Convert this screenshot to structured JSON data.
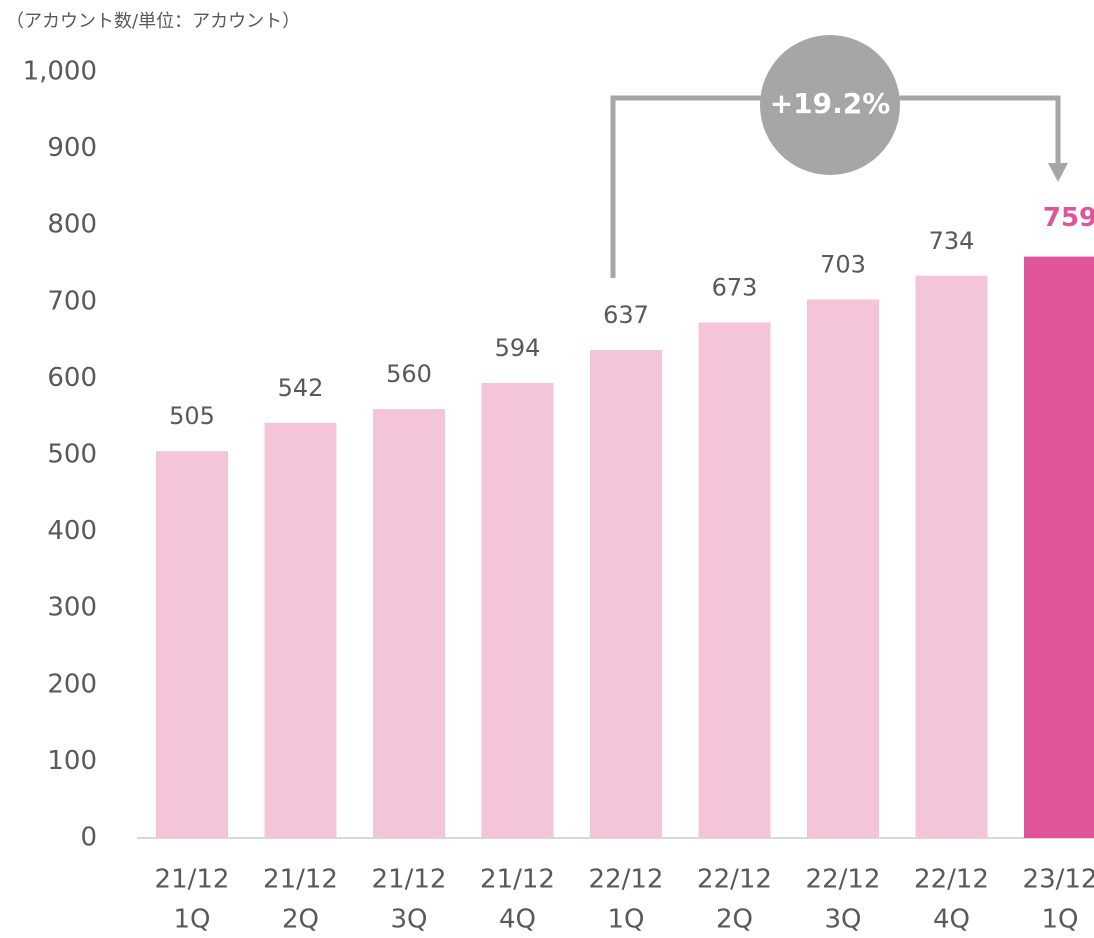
{
  "chart_data": {
    "type": "bar",
    "title": "（アカウント数/単位：アカウント）",
    "categories": [
      [
        "21/12",
        "1Q"
      ],
      [
        "21/12",
        "2Q"
      ],
      [
        "21/12",
        "3Q"
      ],
      [
        "21/12",
        "4Q"
      ],
      [
        "22/12",
        "1Q"
      ],
      [
        "22/12",
        "2Q"
      ],
      [
        "22/12",
        "3Q"
      ],
      [
        "22/12",
        "4Q"
      ],
      [
        "23/12",
        "1Q"
      ]
    ],
    "values": [
      505,
      542,
      560,
      594,
      637,
      673,
      703,
      734,
      759
    ],
    "colors": [
      "#f4c4d9",
      "#f4c4d9",
      "#f4c4d9",
      "#f4c4d9",
      "#f4c4d9",
      "#f4c4d9",
      "#f4c4d9",
      "#f4c4d9",
      "#e0559a"
    ],
    "ylim": [
      0,
      1000
    ],
    "yticks": [
      0,
      100,
      200,
      300,
      400,
      500,
      600,
      700,
      800,
      900,
      {
        "value": 1000,
        "label": "1,000"
      }
    ],
    "grid": false,
    "annotation": "+19.2%"
  }
}
